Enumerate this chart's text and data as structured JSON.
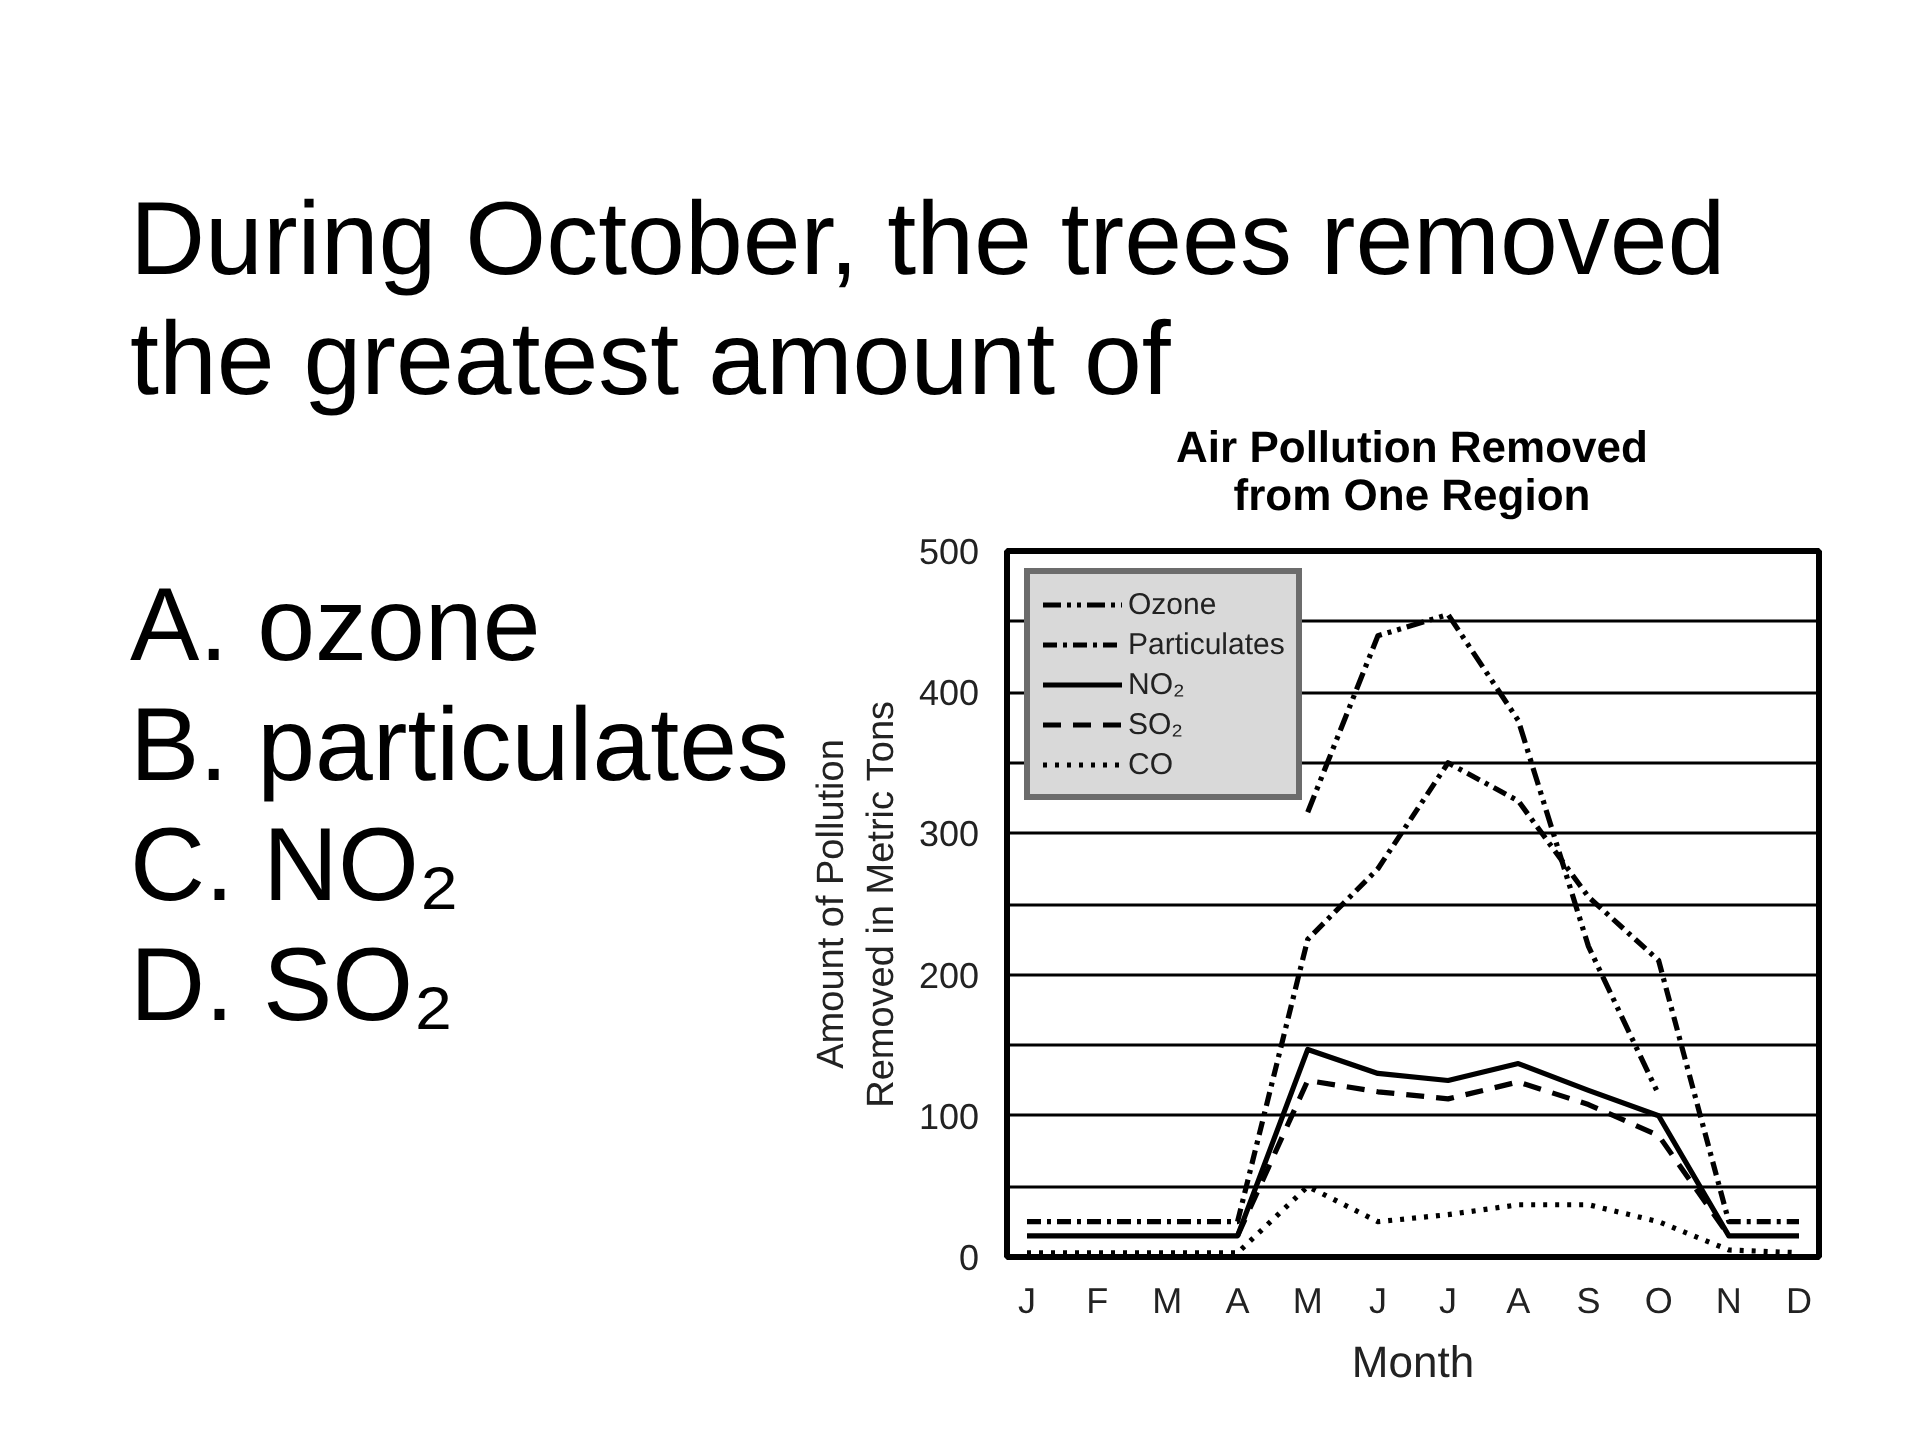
{
  "chart_data": {
    "type": "line",
    "title": "Air Pollution Removed\nfrom One Region",
    "xlabel": "Month",
    "ylabel": "Amount of Pollution\nRemoved in Metric Tons",
    "categories": [
      "J",
      "F",
      "M",
      "A",
      "M",
      "J",
      "J",
      "A",
      "S",
      "O",
      "N",
      "D"
    ],
    "ylim": [
      0,
      500
    ],
    "yticks": [
      0,
      {
        "value": 50,
        "label": null
      },
      100,
      {
        "value": 150,
        "label": null
      },
      200,
      {
        "value": 250,
        "label": null
      },
      300,
      {
        "value": 350,
        "label": null
      },
      400,
      {
        "value": 450,
        "label": null
      },
      500
    ],
    "grid": "y",
    "legend": "top left",
    "series": [
      {
        "name": "Ozone",
        "color": "#000000",
        "line_style": "dashdotdot",
        "values": [
          null,
          null,
          null,
          null,
          315,
          440,
          455,
          380,
          220,
          115,
          null,
          null
        ]
      },
      {
        "name": "Particulates",
        "color": "#000000",
        "line_style": "dashdot",
        "values": [
          25,
          25,
          25,
          25,
          225,
          275,
          350,
          323,
          255,
          210,
          25,
          25
        ]
      },
      {
        "name": "NO₂",
        "color": "#000000",
        "line_style": "solid",
        "values": [
          15,
          15,
          15,
          15,
          147,
          130,
          125,
          137,
          118,
          100,
          15,
          15
        ]
      },
      {
        "name": "SO₂",
        "color": "#000000",
        "line_style": "dashed",
        "values": [
          null,
          null,
          null,
          15,
          125,
          117,
          112,
          124,
          108,
          86,
          15,
          null
        ]
      },
      {
        "name": "CO",
        "color": "#000000",
        "line_style": "dotted",
        "values": [
          3,
          3,
          3,
          3,
          50,
          25,
          30,
          37,
          37,
          25,
          5,
          3
        ]
      }
    ],
    "annotations": [
      "During October, the trees removed the greatest amount of",
      "A. ozone",
      "B. particulates",
      "C. NO₂",
      "D. SO₂"
    ]
  }
}
